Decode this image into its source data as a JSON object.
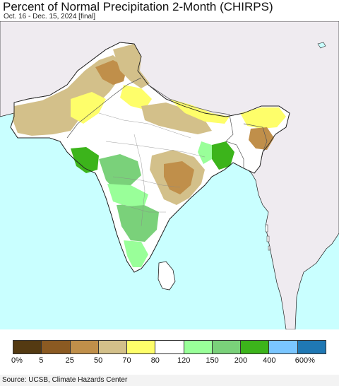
{
  "header": {
    "title": "Percent of Normal Precipitation 2-Month (CHIRPS)",
    "subtitle": "Oct. 16 - Dec. 15, 2024 [final]"
  },
  "map": {
    "region": "South Asia",
    "colors": {
      "ocean": "#c9ffff",
      "no_data_land": "#efebf0",
      "border": "#555555",
      "coast": "#222222"
    }
  },
  "legend": {
    "colors": [
      "#543a12",
      "#8b5a22",
      "#c08f4a",
      "#d3c08a",
      "#fefe6a",
      "#ffffff",
      "#99ff99",
      "#7ad17a",
      "#3cb41b",
      "#7ac6ff",
      "#1f78b4"
    ],
    "labels": [
      "0%",
      "5",
      "25",
      "50",
      "70",
      "80",
      "120",
      "150",
      "200",
      "400",
      "600%"
    ]
  },
  "footer": {
    "source": "Source: UCSB, Climate Hazards Center"
  }
}
